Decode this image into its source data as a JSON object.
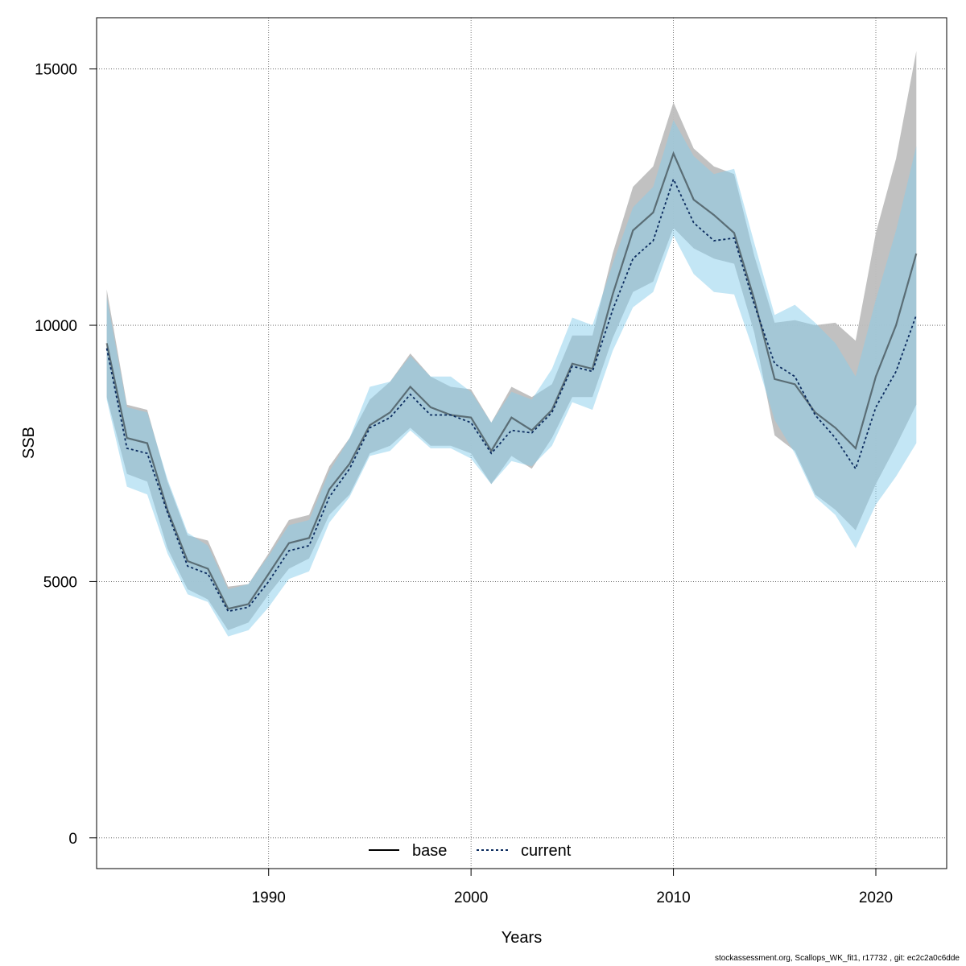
{
  "chart_data": {
    "type": "line",
    "xlabel": "Years",
    "ylabel": "SSB",
    "xlim": [
      1981.5,
      2023.5
    ],
    "ylim": [
      -600,
      16000
    ],
    "xticks": [
      1990,
      2000,
      2010,
      2020
    ],
    "yticks": [
      0,
      5000,
      10000,
      15000
    ],
    "grid": true,
    "legend_position": "bottom-center",
    "x": [
      1982,
      1983,
      1984,
      1985,
      1986,
      1987,
      1988,
      1989,
      1990,
      1991,
      1992,
      1993,
      1994,
      1995,
      1996,
      1997,
      1998,
      1999,
      2000,
      2001,
      2002,
      2003,
      2004,
      2005,
      2006,
      2007,
      2008,
      2009,
      2010,
      2011,
      2012,
      2013,
      2014,
      2015,
      2016,
      2017,
      2018,
      2019,
      2020,
      2021,
      2022
    ],
    "series": [
      {
        "name": "base",
        "line_style": "solid",
        "line_color": "#000000",
        "band_color": "#bebebe",
        "values": [
          9650,
          7800,
          7700,
          6400,
          5400,
          5250,
          4470,
          4560,
          5150,
          5750,
          5850,
          6800,
          7300,
          8050,
          8300,
          8800,
          8400,
          8250,
          8200,
          7550,
          8200,
          7950,
          8350,
          9250,
          9150,
          10600,
          11850,
          12200,
          13350,
          12450,
          12150,
          11800,
          10500,
          8950,
          8850,
          8300,
          8000,
          7600,
          9000,
          10000,
          11400
        ],
        "lower": [
          8600,
          7100,
          6950,
          5650,
          4850,
          4650,
          4050,
          4200,
          4750,
          5250,
          5450,
          6300,
          6700,
          7500,
          7650,
          8000,
          7650,
          7650,
          7500,
          6900,
          7450,
          7200,
          7800,
          8600,
          8600,
          9750,
          10650,
          10850,
          11900,
          11500,
          11300,
          11200,
          9850,
          7850,
          7550,
          6700,
          6400,
          6000,
          6900,
          7650,
          8450
        ],
        "upper": [
          10700,
          8450,
          8350,
          6950,
          5900,
          5800,
          4900,
          4950,
          5550,
          6200,
          6300,
          7250,
          7800,
          8550,
          8900,
          9450,
          9000,
          8800,
          8750,
          8100,
          8800,
          8600,
          8850,
          9800,
          9800,
          11400,
          12700,
          13100,
          14350,
          13450,
          13100,
          12950,
          11350,
          10050,
          10100,
          10000,
          10050,
          9700,
          11800,
          13250,
          15350
        ]
      },
      {
        "name": "current",
        "line_style": "dashed",
        "line_color": "#0a2a5e",
        "band_color": "#87ceeb",
        "values": [
          9550,
          7600,
          7500,
          6350,
          5300,
          5150,
          4420,
          4500,
          5000,
          5600,
          5700,
          6650,
          7200,
          8000,
          8200,
          8650,
          8250,
          8250,
          8100,
          7500,
          7950,
          7900,
          8300,
          9200,
          9100,
          10300,
          11300,
          11650,
          12850,
          12000,
          11650,
          11700,
          10400,
          9250,
          9000,
          8250,
          7800,
          7200,
          8400,
          9100,
          10200
        ],
        "lower": [
          8550,
          6850,
          6700,
          5550,
          4750,
          4600,
          3930,
          4050,
          4500,
          5050,
          5200,
          6150,
          6650,
          7450,
          7550,
          7950,
          7600,
          7600,
          7400,
          6900,
          7350,
          7250,
          7650,
          8500,
          8350,
          9500,
          10350,
          10650,
          11750,
          11000,
          10650,
          10600,
          9450,
          8150,
          7500,
          6650,
          6300,
          5650,
          6500,
          7050,
          7700
        ],
        "upper": [
          10550,
          8400,
          8300,
          7000,
          5950,
          5700,
          4850,
          4950,
          5500,
          6100,
          6200,
          7150,
          7800,
          8800,
          8900,
          9400,
          9000,
          9000,
          8700,
          8100,
          8700,
          8550,
          9150,
          10150,
          10000,
          11200,
          12300,
          12700,
          14000,
          13300,
          12950,
          13050,
          11600,
          10200,
          10400,
          10050,
          9650,
          9000,
          10500,
          11850,
          13500
        ]
      }
    ]
  },
  "footer_text": "stockassessment.org, Scallops_WK_fit1, r17732 , git: ec2c2a0c6dde"
}
